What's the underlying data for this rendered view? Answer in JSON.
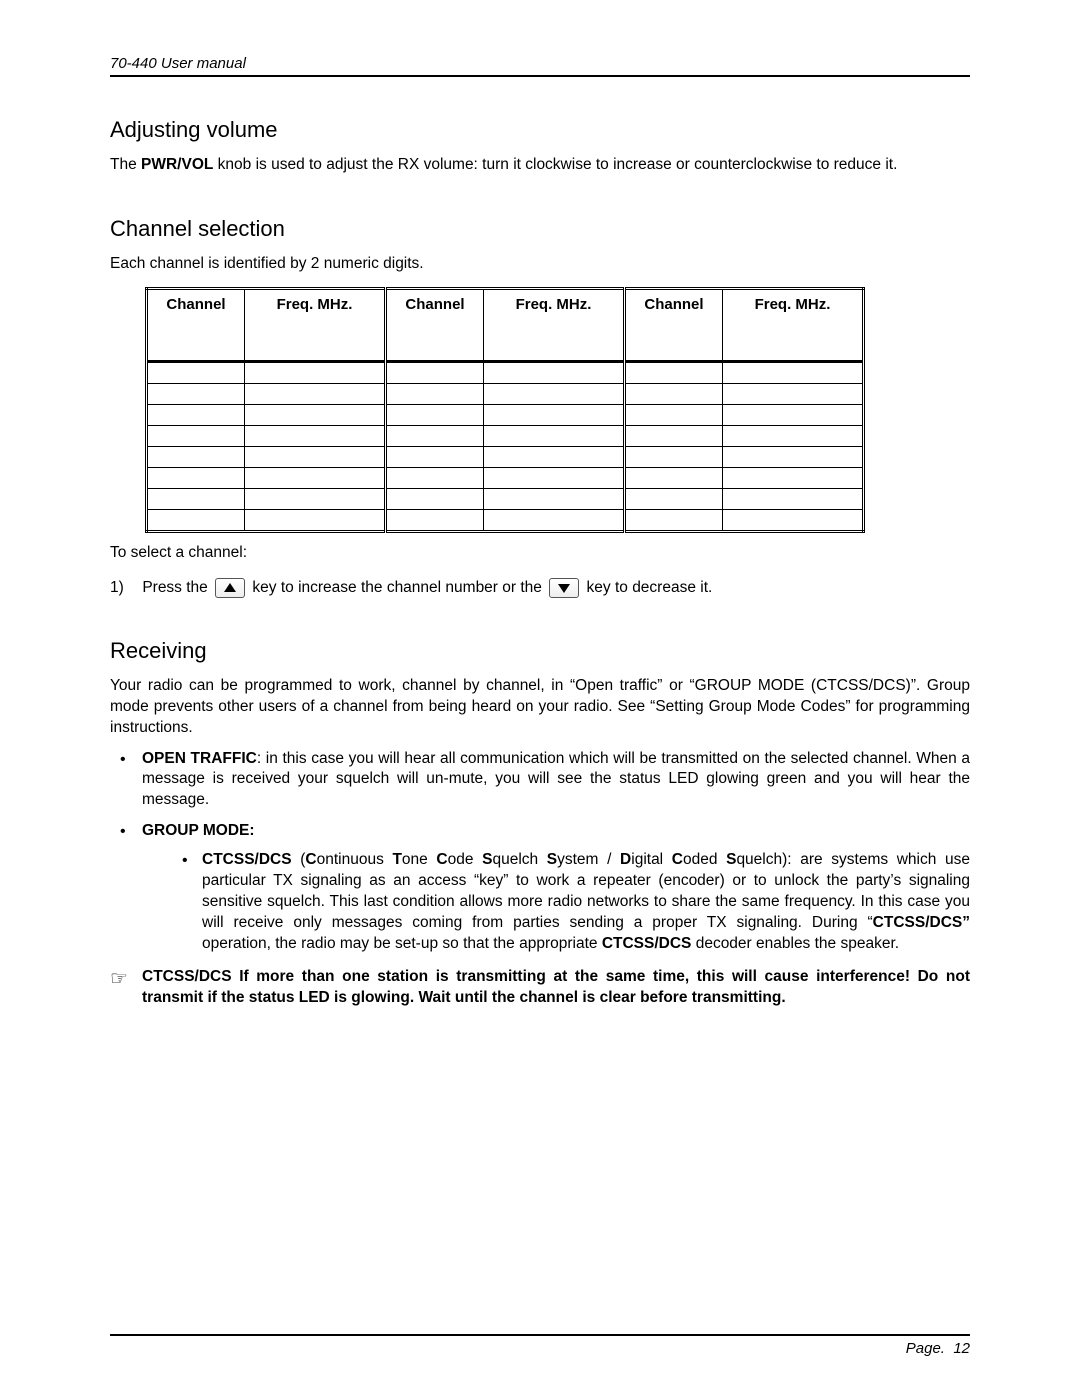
{
  "header": {
    "text": "70-440 User manual"
  },
  "sections": {
    "adjusting": {
      "title": "Adjusting volume",
      "body_pre": "The ",
      "body_bold": "PWR/VOL",
      "body_post": " knob is used to adjust the RX volume: turn it clockwise to increase or counterclockwise to reduce it."
    },
    "channel": {
      "title": "Channel selection",
      "intro": "Each channel is identified by 2 numeric digits.",
      "table": {
        "headers": [
          "Channel",
          "Freq. MHz.",
          "Channel",
          "Freq. MHz.",
          "Channel",
          "Freq. MHz."
        ],
        "row_count": 8
      },
      "after_table": "To select a channel:",
      "step_num": "1)",
      "step_a": "Press the ",
      "step_b": " key to increase the channel number or the ",
      "step_c": " key to decrease it."
    },
    "receiving": {
      "title": "Receiving",
      "intro": "Your radio can be programmed to work, channel by channel, in “Open traffic” or “GROUP MODE (CTCSS/DCS)”.  Group mode prevents other users of a channel from being heard on your radio.  See “Setting Group Mode Codes” for programming instructions.",
      "open_label": "OPEN TRAFFIC",
      "open_text": ": in this case you will hear all communication which will be transmitted on the selected channel. When a message is received your squelch will un-mute, you will see the status LED glowing green and you will hear the message.",
      "group_label": "GROUP MODE:",
      "ctcss_label": "CTCSS/DCS",
      "ctcss_paren_pre": " (",
      "ctcss_expansion_parts": [
        "C",
        "ontinuous ",
        "T",
        "one ",
        "C",
        "ode ",
        "S",
        "quelch ",
        "S",
        "ystem / ",
        "D",
        "igital ",
        "C",
        "oded ",
        "S",
        "quelch"
      ],
      "ctcss_text": "): are systems which use particular TX signaling as an access “key” to work a repeater (encoder) or to unlock the party’s signaling sensitive squelch. This last condition allows more radio networks to share the same frequency. In this case you will receive only messages coming from parties sending a proper TX signaling. During “",
      "ctcss_bold2": "CTCSS/DCS”",
      "ctcss_text2": " operation, the radio may be set-up so that the appropriate ",
      "ctcss_bold3": "CTCSS/DCS",
      "ctcss_text3": " decoder enables the speaker.",
      "note_label": "CTCSS/DCS",
      "note_rest": " If more than one station is transmitting at the same time, this will cause interference! Do not transmit if the status LED is glowing. Wait until the channel is clear before transmitting."
    }
  },
  "footer": {
    "label": "Page.",
    "num": "12"
  }
}
